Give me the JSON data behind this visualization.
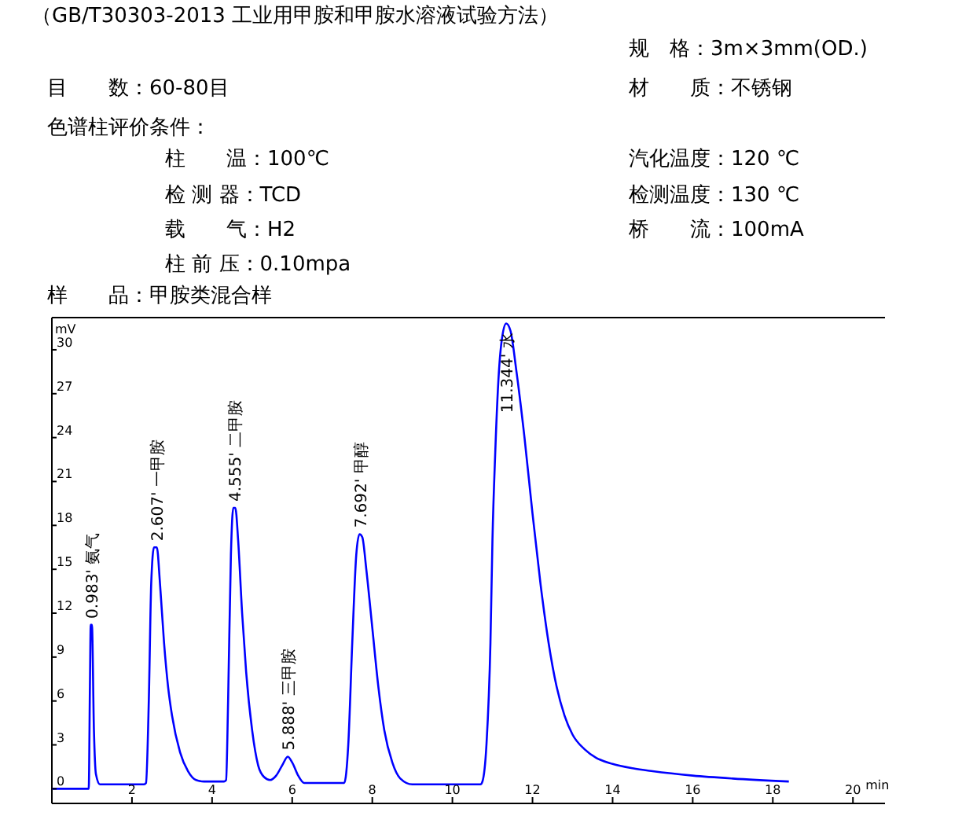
{
  "chart_data": {
    "type": "line",
    "title": "（GB/T30303-2013 工业用甲胺和甲胺水溶液试验方法）",
    "xlabel": "min",
    "ylabel": "mV",
    "annotations": [
      "规　格：3m×3mm(OD.)",
      "目　　数：60-80目",
      "材　　质：不锈钢",
      "色谱柱评价条件：",
      "柱　　温：100℃",
      "汽化温度：120 ℃",
      "检 测 器：TCD",
      "检测温度：130 ℃",
      "载　　气：H2",
      "桥　　流：100mA",
      "柱 前 压：0.10mpa",
      "样　　品：甲胺类混合样",
      {
        "text": "0.983' 氨气",
        "x": 0.983,
        "y": 11.2
      },
      {
        "text": "2.607' 一甲胺",
        "x": 2.607,
        "y": 16.5
      },
      {
        "text": "4.555' 二甲胺",
        "x": 4.555,
        "y": 19.2
      },
      {
        "text": "5.888' 三甲胺",
        "x": 5.888,
        "y": 2.2
      },
      {
        "text": "7.692' 甲醇",
        "x": 7.692,
        "y": 17.4
      },
      {
        "text": "11.344' 水",
        "x": 11.344,
        "y": 31.8
      }
    ],
    "series": [
      {
        "color": "#0000ff",
        "x": [
          0,
          0.92,
          0.95,
          0.97,
          1.0,
          1.05,
          1.1,
          1.2,
          2.3,
          2.35,
          2.42,
          2.48,
          2.55,
          2.62,
          2.7,
          2.8,
          2.9,
          3.0,
          3.2,
          3.4,
          3.6,
          3.8,
          4.3,
          4.35,
          4.4,
          4.47,
          4.53,
          4.58,
          4.65,
          4.75,
          4.85,
          5.0,
          5.15,
          5.3,
          5.45,
          5.6,
          5.75,
          5.89,
          6.0,
          6.15,
          6.3,
          7.2,
          7.3,
          7.4,
          7.5,
          7.6,
          7.68,
          7.75,
          7.85,
          8.0,
          8.15,
          8.3,
          8.5,
          8.7,
          9.0,
          10.7,
          10.75,
          10.85,
          10.95,
          11.0,
          11.07,
          11.15,
          11.25,
          11.344,
          11.45,
          11.6,
          11.8,
          12.0,
          12.2,
          12.4,
          12.6,
          12.8,
          13.0,
          13.3,
          13.6,
          14.0,
          14.5,
          15.0,
          16.0,
          17.0,
          18.4
        ],
        "values": [
          0,
          0,
          7,
          11.2,
          11.2,
          4,
          1,
          0.3,
          0.3,
          0.4,
          6,
          14,
          16.5,
          16.5,
          14,
          10,
          7,
          5,
          2.5,
          1.2,
          0.6,
          0.5,
          0.5,
          0.6,
          6,
          16,
          19.2,
          19.2,
          17,
          12,
          8,
          4,
          1.6,
          0.8,
          0.6,
          0.9,
          1.6,
          2.2,
          1.8,
          0.9,
          0.4,
          0.4,
          0.4,
          3,
          10,
          16,
          17.4,
          17.2,
          15,
          11,
          7,
          4,
          1.8,
          0.7,
          0.3,
          0.3,
          0.5,
          3,
          10,
          17,
          23,
          28,
          31,
          31.8,
          31.3,
          28.5,
          24,
          18.8,
          14,
          10,
          7,
          5,
          3.7,
          2.7,
          2.1,
          1.7,
          1.4,
          1.2,
          0.9,
          0.7,
          0.5
        ]
      }
    ],
    "xlim": [
      0,
      20.8
    ],
    "ylim": [
      -1,
      32.2
    ],
    "xticks": [
      2,
      4,
      6,
      8,
      10,
      12,
      14,
      16,
      18,
      20
    ],
    "yticks": [
      0,
      3,
      6,
      9,
      12,
      15,
      18,
      21,
      24,
      27,
      30
    ],
    "grid": false,
    "marker": "none",
    "line_style": "solid"
  }
}
